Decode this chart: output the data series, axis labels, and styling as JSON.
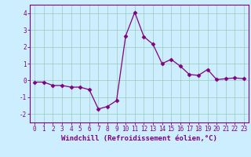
{
  "x": [
    0,
    1,
    2,
    3,
    4,
    5,
    6,
    7,
    8,
    9,
    10,
    11,
    12,
    13,
    14,
    15,
    16,
    17,
    18,
    19,
    20,
    21,
    22,
    23
  ],
  "y": [
    -0.1,
    -0.1,
    -0.3,
    -0.3,
    -0.4,
    -0.4,
    -0.55,
    -1.7,
    -1.55,
    -1.2,
    2.65,
    4.05,
    2.6,
    2.15,
    1.0,
    1.25,
    0.85,
    0.35,
    0.3,
    0.65,
    0.05,
    0.1,
    0.15,
    0.1
  ],
  "line_color": "#800080",
  "marker": "D",
  "marker_size": 2.5,
  "bg_color": "#cceeff",
  "grid_color": "#99ccbb",
  "xlabel": "Windchill (Refroidissement éolien,°C)",
  "xlim": [
    -0.5,
    23.5
  ],
  "ylim": [
    -2.5,
    4.5
  ],
  "yticks": [
    -2,
    -1,
    0,
    1,
    2,
    3,
    4
  ],
  "xticks": [
    0,
    1,
    2,
    3,
    4,
    5,
    6,
    7,
    8,
    9,
    10,
    11,
    12,
    13,
    14,
    15,
    16,
    17,
    18,
    19,
    20,
    21,
    22,
    23
  ],
  "tick_label_fontsize": 5.5,
  "xlabel_fontsize": 6.5
}
